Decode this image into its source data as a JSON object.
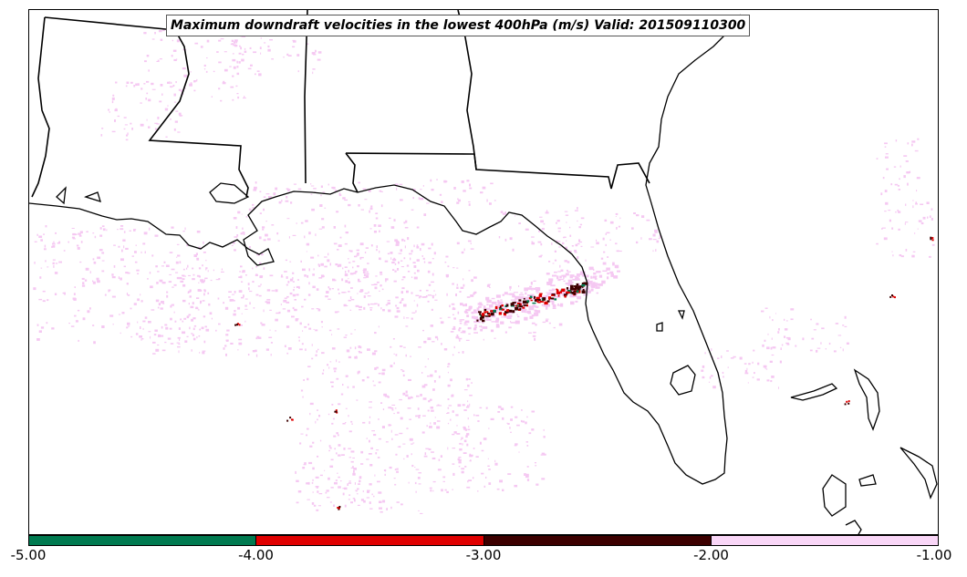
{
  "title": "Maximum downdraft velocities in the lowest 400hPa (m/s) Valid: 201509110300",
  "colorbar": {
    "segments": [
      {
        "range": [
          -5.0,
          -4.0
        ],
        "color": "#007a50"
      },
      {
        "range": [
          -4.0,
          -3.0
        ],
        "color": "#e00000"
      },
      {
        "range": [
          -3.0,
          -2.0
        ],
        "color": "#3d0000"
      },
      {
        "range": [
          -2.0,
          -1.0
        ],
        "color": "#f9d6f7"
      }
    ],
    "ticks": [
      "-5.00",
      "-4.00",
      "-3.00",
      "-2.00",
      "-1.00"
    ]
  },
  "colors": {
    "light_pink": "#f5c8f2",
    "dark_red": "#3d0000",
    "red": "#e00000",
    "green": "#007a50",
    "coastline": "#000000"
  }
}
